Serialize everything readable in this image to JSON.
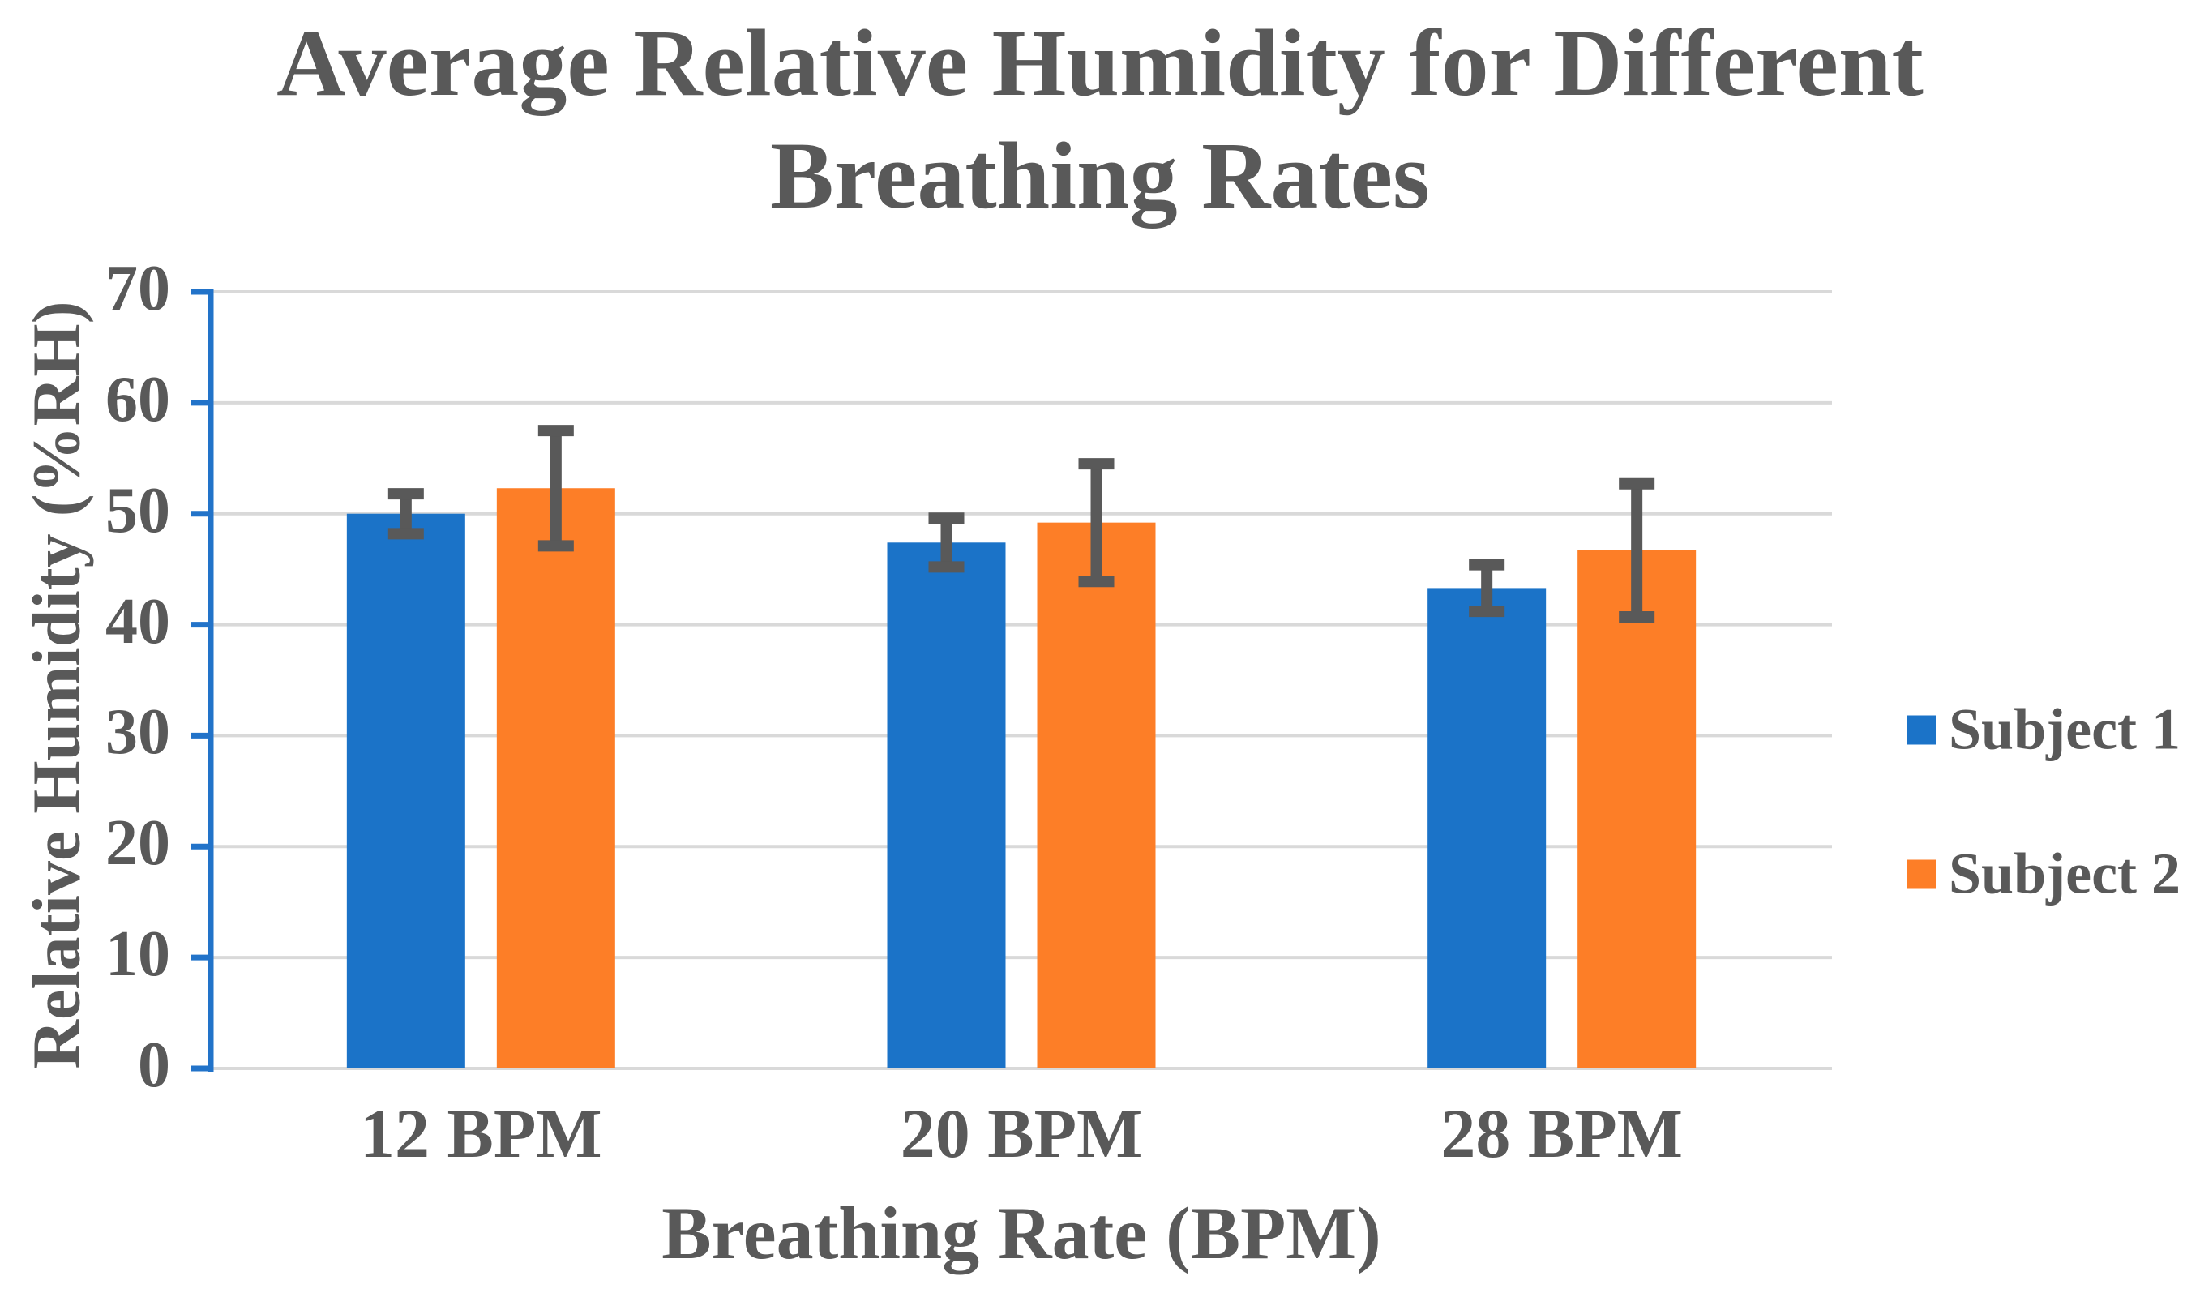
{
  "chart_data": {
    "type": "bar",
    "title": "Average Relative Humidity for Different Breathing Rates",
    "title_lines": [
      "Average Relative Humidity for Different",
      "Breathing Rates"
    ],
    "xlabel": "Breathing Rate (BPM)",
    "ylabel": "Relative Humidity (%RH)",
    "categories": [
      "12 BPM",
      "20 BPM",
      "28 BPM"
    ],
    "series": [
      {
        "name": "Subject 1",
        "color": "#1B73C8",
        "values": [
          50.0,
          47.4,
          43.3
        ],
        "errors": [
          1.8,
          2.2,
          2.1
        ]
      },
      {
        "name": "Subject 2",
        "color": "#FD7E27",
        "values": [
          52.3,
          49.2,
          46.7
        ],
        "errors": [
          5.2,
          5.3,
          6.0
        ]
      }
    ],
    "error_bars": true,
    "ylim": [
      0,
      70
    ],
    "yticks": [
      0,
      10,
      20,
      30,
      40,
      50,
      60,
      70
    ],
    "grid": true,
    "legend_position": "right",
    "colors": {
      "axis_line": "#2273C9",
      "gridline": "#D9D9D9",
      "error_bar": "#595959",
      "text": "#595959"
    }
  }
}
